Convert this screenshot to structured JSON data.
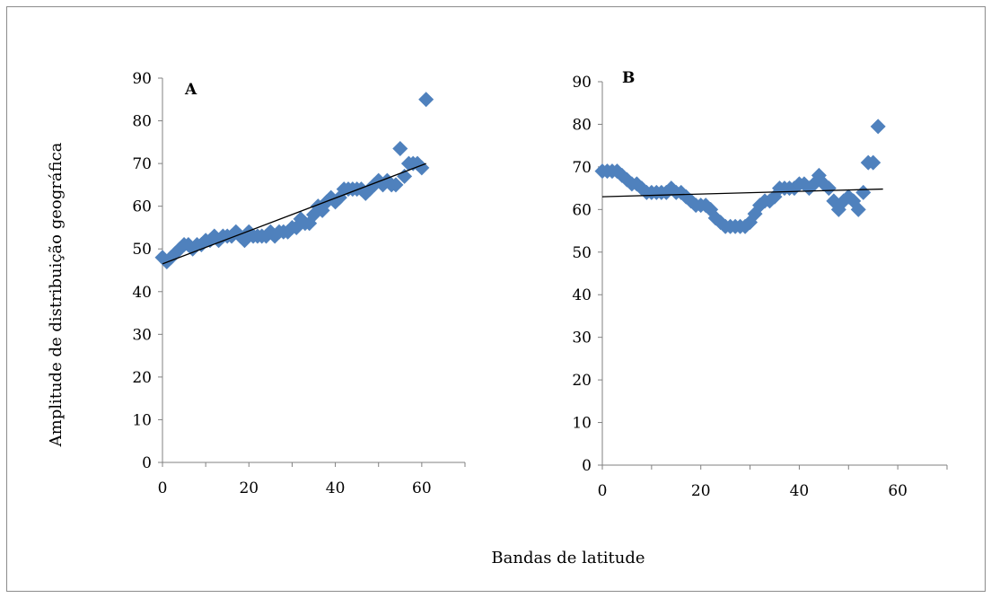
{
  "chart_data": [
    {
      "type": "scatter",
      "panel_label": "A",
      "xlim": [
        0,
        70
      ],
      "ylim": [
        0,
        90
      ],
      "xticks": [
        0,
        20,
        40,
        60
      ],
      "yticks": [
        0,
        10,
        20,
        30,
        40,
        50,
        60,
        70,
        80,
        90
      ],
      "marker": "diamond",
      "marker_color": "#4f81bd",
      "trendline": {
        "x": [
          0,
          61
        ],
        "y": [
          46.5,
          70
        ]
      },
      "points": {
        "x": [
          0,
          1,
          2,
          3,
          4,
          5,
          6,
          7,
          8,
          9,
          10,
          11,
          12,
          13,
          14,
          15,
          16,
          17,
          18,
          19,
          20,
          21,
          22,
          23,
          24,
          25,
          26,
          27,
          28,
          29,
          30,
          31,
          32,
          33,
          34,
          35,
          36,
          37,
          38,
          39,
          40,
          41,
          42,
          43,
          44,
          45,
          46,
          47,
          48,
          49,
          50,
          51,
          52,
          53,
          54,
          55,
          56,
          57,
          58,
          59,
          60,
          61
        ],
        "y": [
          48,
          47,
          48,
          49,
          50,
          51,
          51,
          50,
          51,
          51,
          52,
          52,
          53,
          52,
          53,
          53,
          53,
          54,
          53,
          52,
          54,
          53,
          53,
          53,
          53,
          54,
          53,
          54,
          54,
          54,
          55,
          55,
          57,
          56,
          56,
          58,
          60,
          59,
          61,
          62,
          61,
          62,
          64,
          64,
          64,
          64,
          64,
          63,
          64,
          65,
          66,
          65,
          66,
          65,
          65,
          73.5,
          67,
          70,
          70,
          70,
          69,
          85
        ]
      }
    },
    {
      "type": "scatter",
      "panel_label": "B",
      "xlim": [
        0,
        70
      ],
      "ylim": [
        0,
        90
      ],
      "xticks": [
        0,
        20,
        40,
        60
      ],
      "yticks": [
        0,
        10,
        20,
        30,
        40,
        50,
        60,
        70,
        80,
        90
      ],
      "marker": "diamond",
      "marker_color": "#4f81bd",
      "trendline": {
        "x": [
          0,
          57
        ],
        "y": [
          63,
          64.8
        ]
      },
      "points": {
        "x": [
          0,
          1,
          2,
          3,
          4,
          5,
          6,
          7,
          8,
          9,
          10,
          11,
          12,
          13,
          14,
          15,
          16,
          17,
          18,
          19,
          20,
          21,
          22,
          23,
          24,
          25,
          26,
          27,
          28,
          29,
          30,
          31,
          32,
          33,
          34,
          35,
          36,
          37,
          38,
          39,
          40,
          41,
          42,
          43,
          44,
          45,
          46,
          47,
          48,
          49,
          50,
          51,
          52,
          53,
          54,
          55,
          56
        ],
        "y": [
          69,
          69,
          69,
          69,
          68,
          67,
          66,
          66,
          65,
          64,
          64,
          64,
          64,
          64,
          65,
          64,
          64,
          63,
          62,
          61,
          61,
          61,
          60,
          58,
          57,
          56,
          56,
          56,
          56,
          56,
          57,
          59,
          61,
          62,
          62,
          63,
          65,
          65,
          65,
          65,
          66,
          66,
          65,
          66,
          68,
          66,
          65,
          62,
          60,
          62,
          63,
          62,
          60,
          64,
          71,
          71,
          79.5
        ]
      }
    }
  ],
  "x_axis_title": "Bandas de latitude",
  "y_axis_title": "Amplitude de distribuição geográfica"
}
